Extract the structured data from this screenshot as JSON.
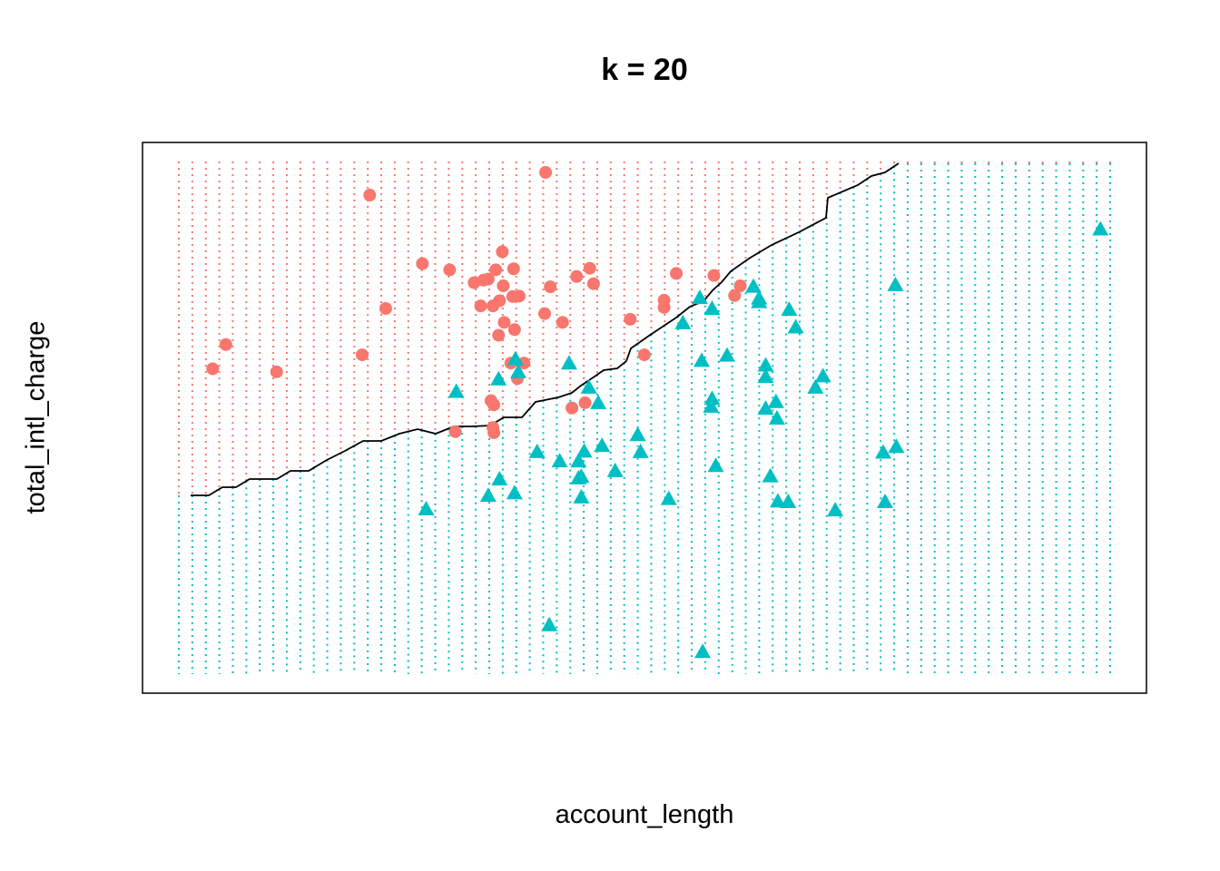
{
  "chart_data": {
    "type": "scatter",
    "title": "k = 20",
    "xlabel": "account_length",
    "ylabel": "total_intl_charge",
    "xlim": [
      0,
      1
    ],
    "ylim": [
      0,
      1
    ],
    "axes_ticks": false,
    "grid": "decision-region dots",
    "colors": {
      "class_a": "#F8766D",
      "class_b": "#00BFC4",
      "boundary": "#000000"
    },
    "series": [
      {
        "marker": "circle",
        "points": [
          [
            0.036,
            0.589
          ],
          [
            0.05,
            0.636
          ],
          [
            0.104,
            0.583
          ],
          [
            0.203,
            0.926
          ],
          [
            0.195,
            0.616
          ],
          [
            0.22,
            0.706
          ],
          [
            0.259,
            0.793
          ],
          [
            0.288,
            0.781
          ],
          [
            0.314,
            0.756
          ],
          [
            0.324,
            0.761
          ],
          [
            0.321,
            0.711
          ],
          [
            0.329,
            0.763
          ],
          [
            0.334,
            0.711
          ],
          [
            0.337,
            0.781
          ],
          [
            0.344,
            0.816
          ],
          [
            0.345,
            0.75
          ],
          [
            0.356,
            0.783
          ],
          [
            0.341,
            0.721
          ],
          [
            0.346,
            0.679
          ],
          [
            0.34,
            0.654
          ],
          [
            0.355,
            0.729
          ],
          [
            0.362,
            0.73
          ],
          [
            0.357,
            0.665
          ],
          [
            0.332,
            0.527
          ],
          [
            0.334,
            0.475
          ],
          [
            0.335,
            0.465
          ],
          [
            0.335,
            0.519
          ],
          [
            0.353,
            0.6
          ],
          [
            0.36,
            0.57
          ],
          [
            0.367,
            0.6
          ],
          [
            0.389,
            0.696
          ],
          [
            0.39,
            0.97
          ],
          [
            0.395,
            0.748
          ],
          [
            0.408,
            0.679
          ],
          [
            0.423,
            0.768
          ],
          [
            0.437,
            0.784
          ],
          [
            0.441,
            0.754
          ],
          [
            0.294,
            0.467
          ],
          [
            0.418,
            0.513
          ],
          [
            0.432,
            0.523
          ],
          [
            0.48,
            0.685
          ],
          [
            0.495,
            0.616
          ],
          [
            0.516,
            0.722
          ],
          [
            0.516,
            0.708
          ],
          [
            0.529,
            0.774
          ],
          [
            0.569,
            0.77
          ],
          [
            0.591,
            0.731
          ],
          [
            0.597,
            0.75
          ]
        ]
      },
      {
        "marker": "triangle",
        "points": [
          [
            0.295,
            0.545
          ],
          [
            0.34,
            0.569
          ],
          [
            0.358,
            0.608
          ],
          [
            0.361,
            0.583
          ],
          [
            0.381,
            0.428
          ],
          [
            0.415,
            0.6
          ],
          [
            0.436,
            0.553
          ],
          [
            0.446,
            0.523
          ],
          [
            0.431,
            0.429
          ],
          [
            0.405,
            0.41
          ],
          [
            0.425,
            0.41
          ],
          [
            0.425,
            0.377
          ],
          [
            0.428,
            0.38
          ],
          [
            0.428,
            0.34
          ],
          [
            0.45,
            0.44
          ],
          [
            0.464,
            0.391
          ],
          [
            0.488,
            0.461
          ],
          [
            0.491,
            0.428
          ],
          [
            0.521,
            0.337
          ],
          [
            0.536,
            0.678
          ],
          [
            0.554,
            0.727
          ],
          [
            0.556,
            0.605
          ],
          [
            0.567,
            0.706
          ],
          [
            0.567,
            0.531
          ],
          [
            0.566,
            0.516
          ],
          [
            0.571,
            0.401
          ],
          [
            0.583,
            0.615
          ],
          [
            0.611,
            0.749
          ],
          [
            0.617,
            0.726
          ],
          [
            0.617,
            0.719
          ],
          [
            0.624,
            0.574
          ],
          [
            0.624,
            0.596
          ],
          [
            0.629,
            0.381
          ],
          [
            0.624,
            0.512
          ],
          [
            0.635,
            0.525
          ],
          [
            0.636,
            0.493
          ],
          [
            0.637,
            0.332
          ],
          [
            0.649,
            0.704
          ],
          [
            0.656,
            0.67
          ],
          [
            0.648,
            0.331
          ],
          [
            0.677,
            0.553
          ],
          [
            0.685,
            0.575
          ],
          [
            0.698,
            0.315
          ],
          [
            0.762,
            0.752
          ],
          [
            0.749,
            0.427
          ],
          [
            0.751,
            0.331
          ],
          [
            0.263,
            0.317
          ],
          [
            0.329,
            0.343
          ],
          [
            0.341,
            0.375
          ],
          [
            0.357,
            0.348
          ],
          [
            0.394,
            0.092
          ],
          [
            0.557,
            0.04
          ],
          [
            0.763,
            0.438
          ],
          [
            0.98,
            0.86
          ]
        ]
      }
    ]
  }
}
